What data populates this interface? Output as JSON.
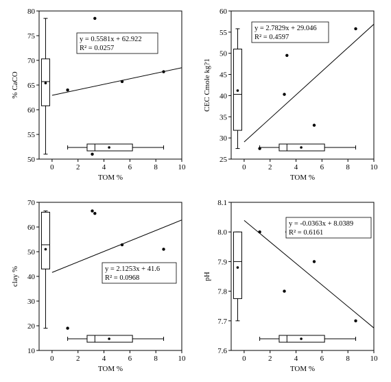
{
  "chart_data": [
    {
      "type": "scatter",
      "xlabel": "TOM %",
      "ylabel": "% CaCO",
      "xlim": [
        -1,
        10
      ],
      "ylim": [
        50,
        80
      ],
      "xticks": [
        "0",
        "2",
        "4",
        "6",
        "8",
        "10"
      ],
      "yticks": [
        "50",
        "55",
        "60",
        "65",
        "70",
        "75",
        "80"
      ],
      "points": [
        {
          "x": 1.2,
          "y": 64.0
        },
        {
          "x": 3.1,
          "y": 51.0
        },
        {
          "x": 3.3,
          "y": 78.5
        },
        {
          "x": 5.4,
          "y": 65.7
        },
        {
          "x": 8.6,
          "y": 67.7
        }
      ],
      "trend": {
        "slope": 0.5581,
        "intercept": 62.922
      },
      "equation": "y = 0.5581x + 62.922",
      "r2": "R² = 0.0257",
      "equation_box": "top-center",
      "x_boxplot": {
        "min": 1.2,
        "q1": 2.7,
        "median": 3.3,
        "q3": 6.2,
        "max": 8.6,
        "mean": 4.4
      },
      "y_boxplot": {
        "min": 51.0,
        "q1": 60.8,
        "median": 65.7,
        "q3": 70.3,
        "max": 78.5,
        "mean": 65.4
      }
    },
    {
      "type": "scatter",
      "xlabel": "TOM %",
      "ylabel": "CEC Cmole kg?1",
      "xlim": [
        -1,
        10
      ],
      "ylim": [
        25,
        60
      ],
      "xticks": [
        "0",
        "2",
        "4",
        "6",
        "8",
        "10"
      ],
      "yticks": [
        "25",
        "30",
        "35",
        "40",
        "45",
        "50",
        "55",
        "60"
      ],
      "points": [
        {
          "x": 1.2,
          "y": 27.5
        },
        {
          "x": 3.1,
          "y": 40.3
        },
        {
          "x": 3.3,
          "y": 49.5
        },
        {
          "x": 5.4,
          "y": 33.0
        },
        {
          "x": 8.6,
          "y": 55.8
        }
      ],
      "trend": {
        "slope": 2.7829,
        "intercept": 29.046
      },
      "equation": "y = 2.7829x + 29.046",
      "r2": "R² = 0.4597",
      "equation_box": "top-left",
      "x_boxplot": {
        "min": 1.2,
        "q1": 2.7,
        "median": 3.3,
        "q3": 6.2,
        "max": 8.6,
        "mean": 4.4
      },
      "y_boxplot": {
        "min": 27.5,
        "q1": 31.8,
        "median": 40.3,
        "q3": 51.0,
        "max": 55.8,
        "mean": 41.2
      }
    },
    {
      "type": "scatter",
      "xlabel": "TOM %",
      "ylabel": "clay %",
      "xlim": [
        -1,
        10
      ],
      "ylim": [
        10,
        70
      ],
      "xticks": [
        "0",
        "2",
        "4",
        "6",
        "8",
        "10"
      ],
      "yticks": [
        "10",
        "20",
        "30",
        "40",
        "50",
        "60",
        "70"
      ],
      "points": [
        {
          "x": 1.2,
          "y": 19.0
        },
        {
          "x": 3.1,
          "y": 66.5
        },
        {
          "x": 3.3,
          "y": 65.5
        },
        {
          "x": 5.4,
          "y": 52.8
        },
        {
          "x": 8.6,
          "y": 51.0
        }
      ],
      "trend": {
        "slope": 2.1253,
        "intercept": 41.6
      },
      "equation": "y = 2.1253x + 41.6",
      "r2": "R² = 0.0968",
      "equation_box": "center-right",
      "x_boxplot": {
        "min": 1.2,
        "q1": 2.7,
        "median": 3.3,
        "q3": 6.2,
        "max": 8.6,
        "mean": 4.4
      },
      "y_boxplot": {
        "min": 19.0,
        "q1": 43.0,
        "median": 52.8,
        "q3": 66.0,
        "max": 66.5,
        "mean": 51.0
      }
    },
    {
      "type": "scatter",
      "xlabel": "TOM %",
      "ylabel": "pH",
      "xlim": [
        -1,
        10
      ],
      "ylim": [
        7.6,
        8.1
      ],
      "xticks": [
        "0",
        "2",
        "4",
        "6",
        "8",
        "10"
      ],
      "yticks": [
        "7.6",
        "7.7",
        "7.8",
        "7.9",
        "8.0",
        "8.1"
      ],
      "points": [
        {
          "x": 1.2,
          "y": 8.0
        },
        {
          "x": 3.1,
          "y": 7.8
        },
        {
          "x": 3.3,
          "y": 8.0
        },
        {
          "x": 5.4,
          "y": 7.9
        },
        {
          "x": 8.6,
          "y": 7.7
        }
      ],
      "trend": {
        "slope": -0.0363,
        "intercept": 8.0389
      },
      "equation": "y = -0.0363x + 8.0389",
      "r2": "R² = 0.6161",
      "equation_box": "top-right",
      "x_boxplot": {
        "min": 1.2,
        "q1": 2.7,
        "median": 3.3,
        "q3": 6.2,
        "max": 8.6,
        "mean": 4.4
      },
      "y_boxplot": {
        "min": 7.7,
        "q1": 7.775,
        "median": 7.9,
        "q3": 8.0,
        "max": 8.0,
        "mean": 7.88
      }
    }
  ]
}
